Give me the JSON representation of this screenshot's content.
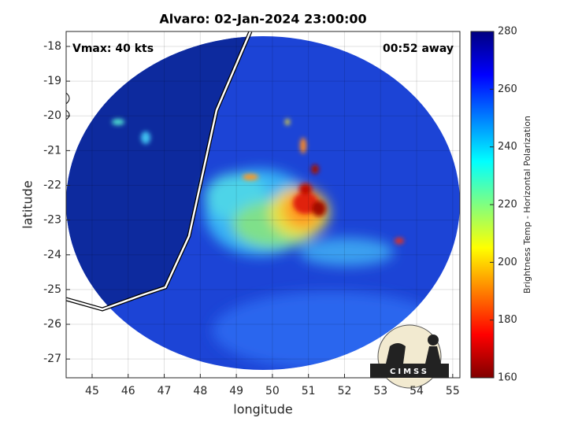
{
  "logo": "CIMSS",
  "chart_data": {
    "type": "image",
    "title": "Alvaro: 02-Jan-2024 23:00:00",
    "annotations": [
      "Vmax: 40 kts",
      "00:52 away"
    ],
    "xlabel": "longitude",
    "ylabel": "latitude",
    "xlim": [
      44.28,
      55.2
    ],
    "xticks": [
      45,
      46,
      47,
      48,
      49,
      50,
      51,
      52,
      53,
      54,
      55
    ],
    "ylim": [
      -27.54,
      -17.57
    ],
    "yticks": [
      -27,
      -26,
      -25,
      -24,
      -23,
      -22,
      -21,
      -20,
      -19,
      -18
    ],
    "grid": true,
    "colorbar_label": "Brightness Temp - Horizontal Polarization",
    "clim": [
      160,
      280
    ],
    "cticks": [
      160,
      180,
      200,
      220,
      240,
      260,
      280
    ],
    "colormap": [
      "#800000",
      "#ff0000",
      "#ff8000",
      "#ffff00",
      "#80ff80",
      "#00ffff",
      "#0080ff",
      "#0000ff",
      "#000080"
    ]
  }
}
